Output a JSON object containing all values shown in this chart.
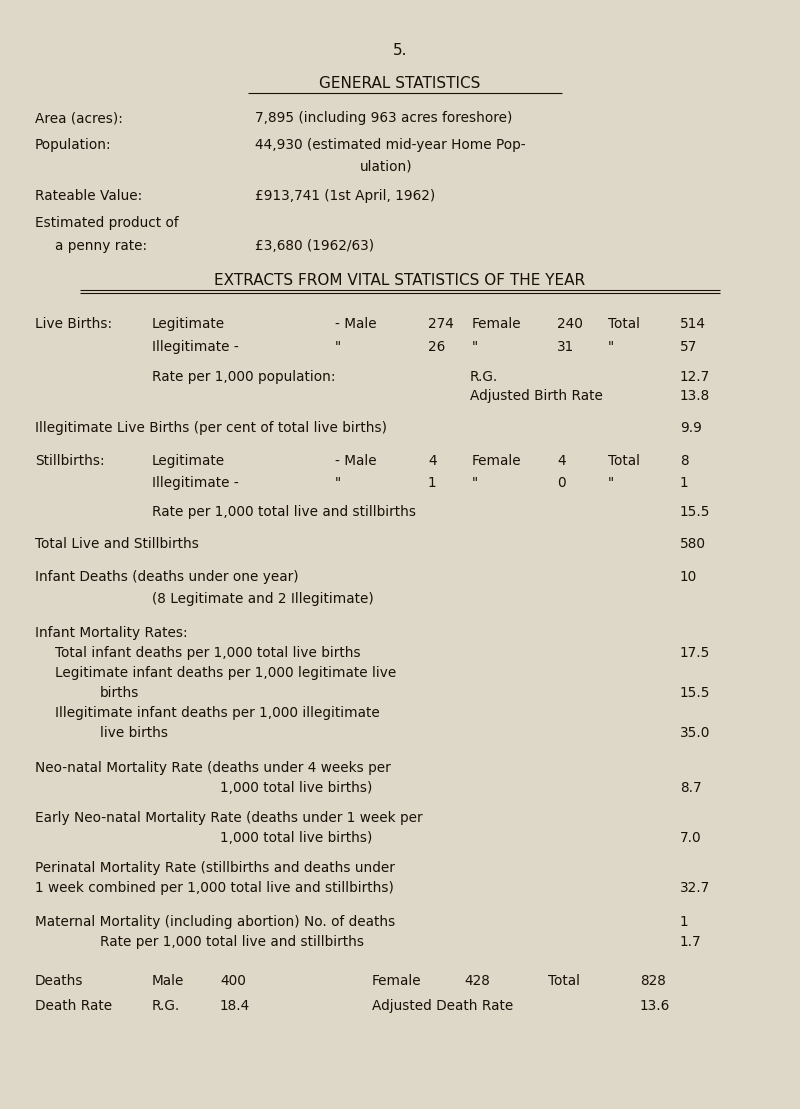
{
  "bg_color": "#ddd8c8",
  "text_color": "#1a1008",
  "font_family": "Courier New",
  "page_number": "5.",
  "title1": "GENERAL STATISTICS",
  "title2": "EXTRACTS FROM VITAL STATISTICS OF THE YEAR",
  "fs": 9.8
}
